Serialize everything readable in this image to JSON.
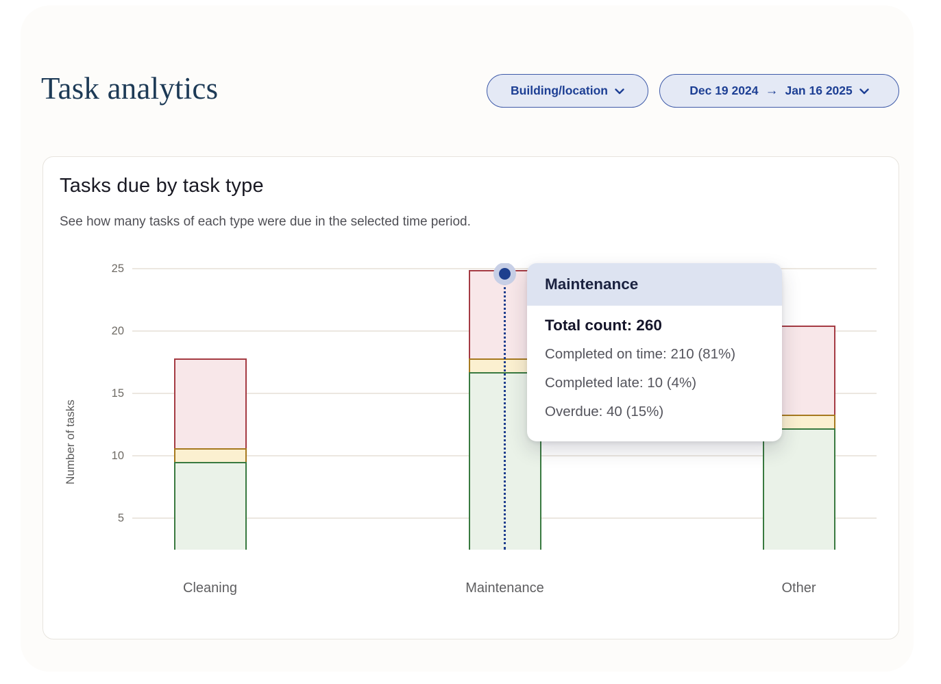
{
  "page": {
    "title": "Task analytics"
  },
  "filters": {
    "building_button": {
      "label": "Building/location",
      "icon": "chevron-down"
    },
    "date_range_button": {
      "start": "Dec 19 2024",
      "arrow": "→",
      "end": "Jan 16 2025",
      "icon": "chevron-down"
    }
  },
  "card": {
    "title": "Tasks due by task type",
    "subtitle": "See how many tasks of each type were due in the selected time period."
  },
  "chart_data": {
    "type": "bar",
    "stacked": true,
    "title": "Tasks due by task type",
    "xlabel": "",
    "ylabel": "Number of tasks",
    "ylim": [
      0,
      25
    ],
    "yticks": [
      5,
      10,
      15,
      20,
      25
    ],
    "grid": true,
    "legend": "none",
    "categories": [
      "Cleaning",
      "Maintenance",
      "Other"
    ],
    "series": [
      {
        "name": "Completed on time",
        "values": [
          9.5,
          16.7,
          12.2
        ],
        "fill": "#eaf2e8",
        "stroke": "#38793f"
      },
      {
        "name": "Completed late",
        "values": [
          1.1,
          1.1,
          1.1
        ],
        "fill": "#fbf0d0",
        "stroke": "#a6791e"
      },
      {
        "name": "Overdue",
        "values": [
          7.2,
          7.1,
          7.1
        ],
        "fill": "#f8e7e9",
        "stroke": "#a43a42"
      }
    ],
    "hovered_category": "Maintenance",
    "hover_marker_color": "#1d3f8e"
  },
  "tooltip": {
    "title": "Maintenance",
    "total_label": "Total count: 260",
    "rows": [
      "Completed on time: 210 (81%)",
      "Completed late: 10 (4%)",
      "Overdue: 40 (15%)"
    ]
  },
  "colors": {
    "accent_navy": "#1d3f94",
    "pill_bg": "#e4e9f5",
    "tooltip_header_bg": "#dde3f1",
    "gridline": "#ece7e0",
    "title_serif": "#1d3a56"
  }
}
